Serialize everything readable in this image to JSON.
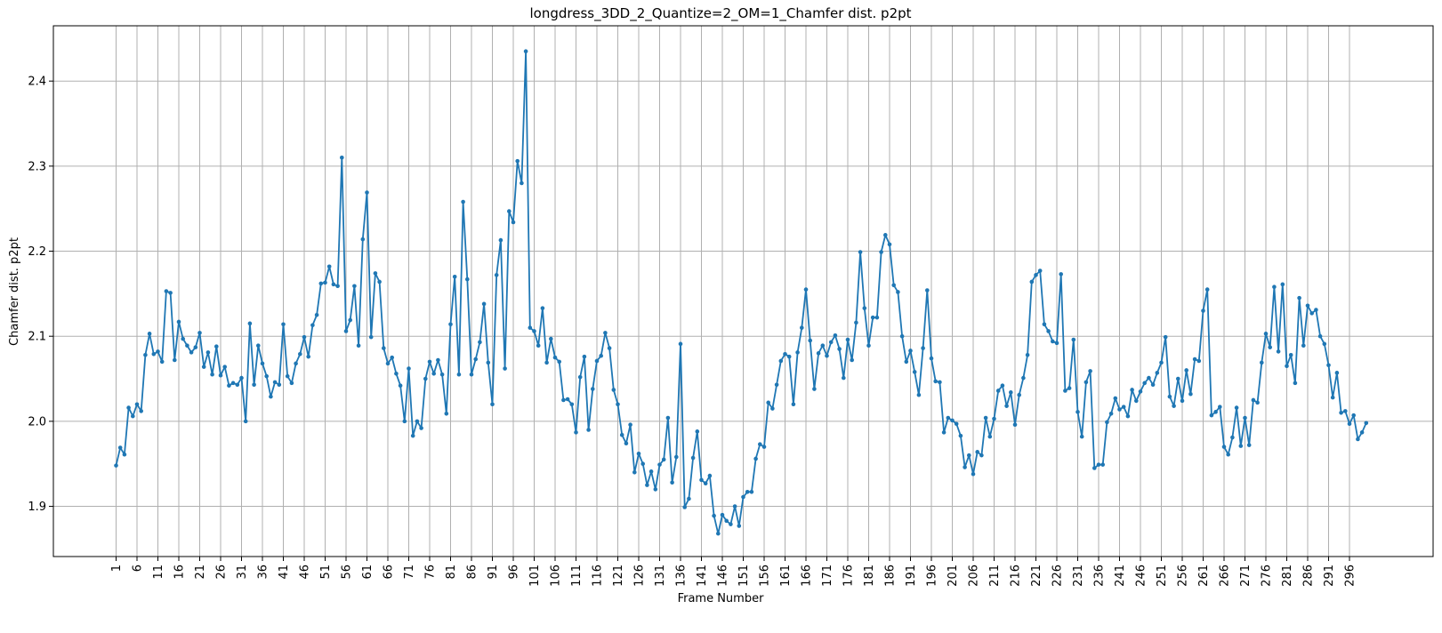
{
  "chart_data": {
    "type": "line",
    "title": "longdress_3DD_2_Quantize=2_OM=1_Chamfer dist. p2pt",
    "xlabel": "Frame Number",
    "ylabel": "Chamfer dist. p2pt",
    "xlim": [
      -14,
      316
    ],
    "ylim": [
      1.841,
      2.465
    ],
    "x_ticks": [
      1,
      6,
      11,
      16,
      21,
      26,
      31,
      36,
      41,
      46,
      51,
      56,
      61,
      66,
      71,
      76,
      81,
      86,
      91,
      96,
      101,
      106,
      111,
      116,
      121,
      126,
      131,
      136,
      141,
      146,
      151,
      156,
      161,
      166,
      171,
      176,
      181,
      186,
      191,
      196,
      201,
      206,
      211,
      216,
      221,
      226,
      231,
      236,
      241,
      246,
      251,
      256,
      261,
      266,
      271,
      276,
      281,
      286,
      291,
      296
    ],
    "y_ticks": [
      1.9,
      2.0,
      2.1,
      2.2,
      2.3,
      2.4
    ],
    "y_tick_labels": [
      "1.9",
      "2.0",
      "2.1",
      "2.2",
      "2.3",
      "2.4"
    ],
    "grid": true,
    "line_color": "#1f77b4",
    "x_start": 1,
    "series": [
      {
        "values": [
          1.948,
          1.969,
          1.961,
          2.016,
          2.006,
          2.02,
          2.012,
          2.078,
          2.103,
          2.079,
          2.082,
          2.07,
          2.153,
          2.151,
          2.072,
          2.117,
          2.097,
          2.089,
          2.081,
          2.087,
          2.104,
          2.064,
          2.081,
          2.055,
          2.088,
          2.054,
          2.064,
          2.042,
          2.045,
          2.043,
          2.051,
          2.0,
          2.115,
          2.043,
          2.089,
          2.068,
          2.053,
          2.029,
          2.046,
          2.043,
          2.114,
          2.053,
          2.045,
          2.068,
          2.079,
          2.099,
          2.076,
          2.113,
          2.125,
          2.162,
          2.163,
          2.182,
          2.161,
          2.159,
          2.31,
          2.106,
          2.119,
          2.159,
          2.089,
          2.214,
          2.269,
          2.099,
          2.174,
          2.164,
          2.086,
          2.068,
          2.075,
          2.056,
          2.042,
          2.0,
          2.062,
          1.983,
          2.0,
          1.992,
          2.05,
          2.07,
          2.056,
          2.072,
          2.055,
          2.009,
          2.114,
          2.17,
          2.055,
          2.258,
          2.167,
          2.055,
          2.073,
          2.093,
          2.138,
          2.069,
          2.02,
          2.172,
          2.213,
          2.062,
          2.247,
          2.234,
          2.306,
          2.28,
          2.435,
          2.11,
          2.106,
          2.089,
          2.133,
          2.069,
          2.097,
          2.075,
          2.07,
          2.025,
          2.026,
          2.02,
          1.987,
          2.052,
          2.076,
          1.99,
          2.038,
          2.071,
          2.077,
          2.104,
          2.086,
          2.037,
          2.02,
          1.984,
          1.974,
          1.996,
          1.94,
          1.962,
          1.95,
          1.925,
          1.941,
          1.92,
          1.949,
          1.955,
          2.004,
          1.928,
          1.958,
          2.091,
          1.899,
          1.909,
          1.957,
          1.988,
          1.931,
          1.927,
          1.936,
          1.889,
          1.868,
          1.89,
          1.883,
          1.879,
          1.9,
          1.877,
          1.911,
          1.917,
          1.917,
          1.956,
          1.973,
          1.97,
          2.022,
          2.015,
          2.043,
          2.071,
          2.079,
          2.076,
          2.02,
          2.081,
          2.11,
          2.155,
          2.095,
          2.038,
          2.08,
          2.089,
          2.077,
          2.093,
          2.101,
          2.085,
          2.051,
          2.096,
          2.072,
          2.116,
          2.199,
          2.133,
          2.089,
          2.122,
          2.122,
          2.199,
          2.219,
          2.208,
          2.16,
          2.152,
          2.1,
          2.07,
          2.083,
          2.058,
          2.031,
          2.086,
          2.154,
          2.074,
          2.047,
          2.046,
          1.987,
          2.004,
          2.001,
          1.997,
          1.983,
          1.946,
          1.96,
          1.938,
          1.964,
          1.96,
          2.004,
          1.982,
          2.003,
          2.036,
          2.042,
          2.018,
          2.034,
          1.996,
          2.031,
          2.051,
          2.078,
          2.164,
          2.172,
          2.177,
          2.114,
          2.106,
          2.094,
          2.092,
          2.173,
          2.036,
          2.039,
          2.096,
          2.011,
          1.982,
          2.046,
          2.059,
          1.945,
          1.949,
          1.949,
          1.999,
          2.009,
          2.027,
          2.014,
          2.017,
          2.006,
          2.037,
          2.024,
          2.035,
          2.045,
          2.051,
          2.043,
          2.057,
          2.069,
          2.099,
          2.029,
          2.018,
          2.05,
          2.024,
          2.06,
          2.032,
          2.073,
          2.071,
          2.13,
          2.155,
          2.007,
          2.011,
          2.017,
          1.97,
          1.961,
          1.981,
          2.016,
          1.971,
          2.004,
          1.972,
          2.025,
          2.022,
          2.069,
          2.103,
          2.087,
          2.158,
          2.082,
          2.161,
          2.065,
          2.078,
          2.045,
          2.145,
          2.089,
          2.136,
          2.127,
          2.131,
          2.1,
          2.091,
          2.066,
          2.028,
          2.057,
          2.01,
          2.012,
          1.997,
          2.007,
          1.979,
          1.987,
          1.998
        ]
      }
    ]
  }
}
